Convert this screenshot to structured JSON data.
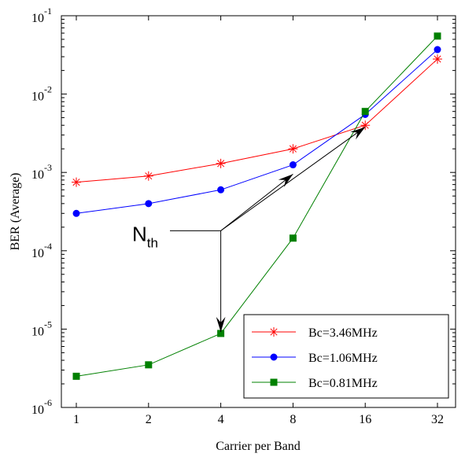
{
  "chart_data": {
    "type": "line",
    "xlabel": "Carrier per Band",
    "ylabel": "BER (Average)",
    "x_ticks": [
      "1",
      "2",
      "4",
      "8",
      "16",
      "32"
    ],
    "x": [
      1,
      2,
      4,
      8,
      16,
      32
    ],
    "x_scale": "log2",
    "y_scale": "log10",
    "ylim": [
      1e-06,
      0.1
    ],
    "y_ticks": [
      {
        "base": "10",
        "exp": "-1"
      },
      {
        "base": "10",
        "exp": "-2"
      },
      {
        "base": "10",
        "exp": "-3"
      },
      {
        "base": "10",
        "exp": "-4"
      },
      {
        "base": "10",
        "exp": "-5"
      },
      {
        "base": "10",
        "exp": "-6"
      }
    ],
    "grid": false,
    "legend_position": "bottom-right",
    "series": [
      {
        "name": "Bc=3.46MHz",
        "color": "#ff0000",
        "marker": "asterisk",
        "values": [
          0.00075,
          0.0009,
          0.0013,
          0.002,
          0.004,
          0.028
        ]
      },
      {
        "name": "Bc=1.06MHz",
        "color": "#0000ff",
        "marker": "circle",
        "values": [
          0.0003,
          0.0004,
          0.0006,
          0.00125,
          0.0055,
          0.037
        ]
      },
      {
        "name": "Bc=0.81MHz",
        "color": "#008000",
        "marker": "square",
        "values": [
          2.5e-06,
          3.5e-06,
          8.8e-06,
          0.000145,
          0.006,
          0.055
        ]
      }
    ],
    "annotation": {
      "label": "N",
      "subscript": "th",
      "color": "#000000",
      "points_to": [
        {
          "x": 8,
          "y": 0.00095
        },
        {
          "x": 16,
          "y": 0.0038
        },
        {
          "x": 4,
          "y": 9.2e-06
        }
      ],
      "origin": {
        "x": 4,
        "y": 0.00018
      }
    }
  }
}
